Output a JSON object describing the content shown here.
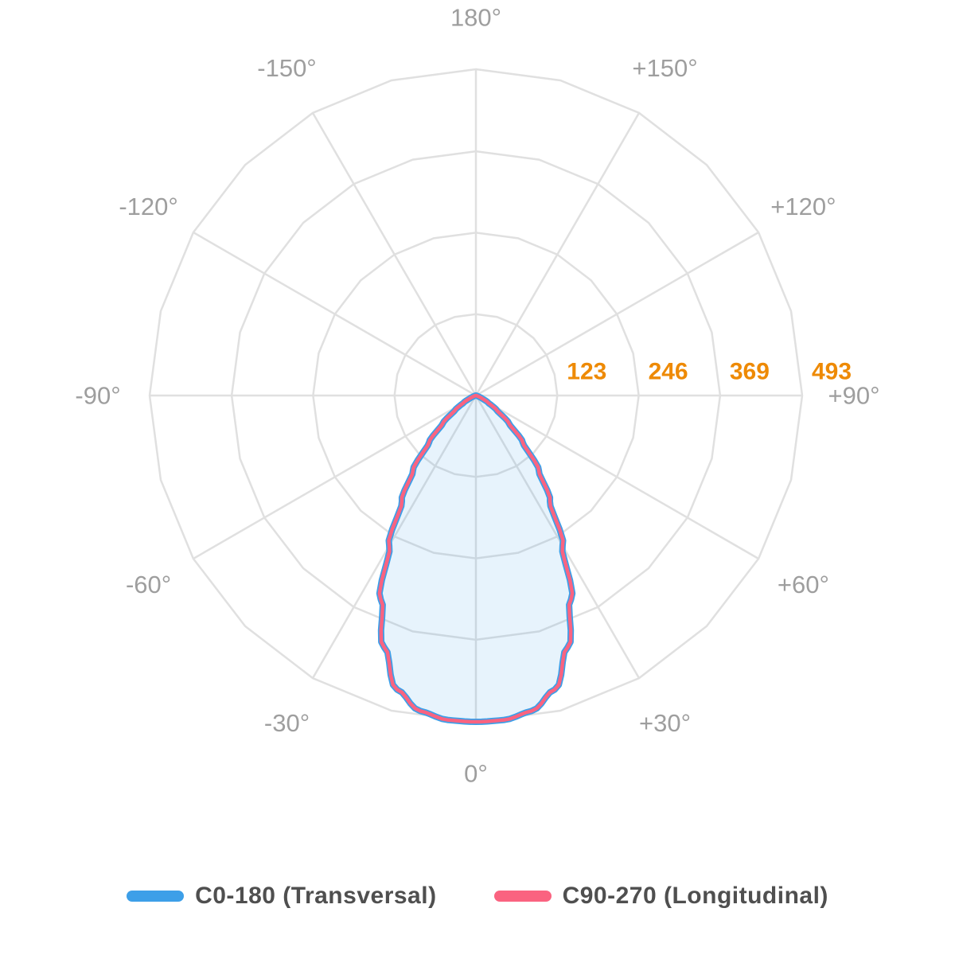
{
  "chart_data": {
    "type": "line-polar",
    "title": "",
    "orientation": "0-degrees-at-bottom-symmetric",
    "unit": "cd",
    "max_value": 493,
    "radial_ticks": [
      {
        "value": 123,
        "label": "123"
      },
      {
        "value": 246,
        "label": "246"
      },
      {
        "value": 369,
        "label": "369"
      },
      {
        "value": 493,
        "label": "493"
      }
    ],
    "angle_labels": [
      {
        "deg": 180,
        "label": "180°"
      },
      {
        "deg": -150,
        "label": "-150°"
      },
      {
        "deg": 150,
        "label": "+150°"
      },
      {
        "deg": -120,
        "label": "-120°"
      },
      {
        "deg": 120,
        "label": "+120°"
      },
      {
        "deg": -90,
        "label": "-90°"
      },
      {
        "deg": 90,
        "label": "+90°"
      },
      {
        "deg": -60,
        "label": "-60°"
      },
      {
        "deg": 60,
        "label": "+60°"
      },
      {
        "deg": -30,
        "label": "-30°"
      },
      {
        "deg": 30,
        "label": "+30°"
      },
      {
        "deg": 0,
        "label": "0°"
      }
    ],
    "angles_deg": [
      0,
      5,
      10,
      15,
      20,
      25,
      30,
      35,
      40,
      45,
      50,
      55,
      60,
      65,
      70,
      75,
      80,
      85,
      90
    ],
    "series": [
      {
        "name": "C0-180 (Transversal)",
        "color": "#3D9FE8",
        "fill": "rgba(61, 159, 232, 0.12)",
        "values": [
          493,
          492,
          484,
          460,
          405,
          340,
          262,
          195,
          148,
          100,
          65,
          38,
          21,
          10,
          4,
          2,
          1,
          0,
          0
        ]
      },
      {
        "name": "C90-270 (Longitudinal)",
        "color": "#FA6380",
        "fill": "none",
        "values": [
          493,
          492,
          484,
          460,
          405,
          340,
          262,
          195,
          148,
          100,
          65,
          38,
          21,
          10,
          4,
          2,
          1,
          0,
          0
        ]
      }
    ],
    "grid": {
      "rings": 4,
      "spokes_step_deg": 30,
      "ring_facet_step_deg": 15
    },
    "legend_position": "bottom"
  },
  "legend": {
    "items": [
      {
        "label": "C0-180 (Transversal)",
        "color": "#3D9FE8"
      },
      {
        "label": "C90-270 (Longitudinal)",
        "color": "#FA6380"
      }
    ]
  },
  "colors": {
    "background": "#FFFFFF",
    "grid": "#E0E0E0",
    "angle_label": "#9E9E9E",
    "radial_label": "#EE8A05",
    "legend_text": "#4F4F4F"
  }
}
